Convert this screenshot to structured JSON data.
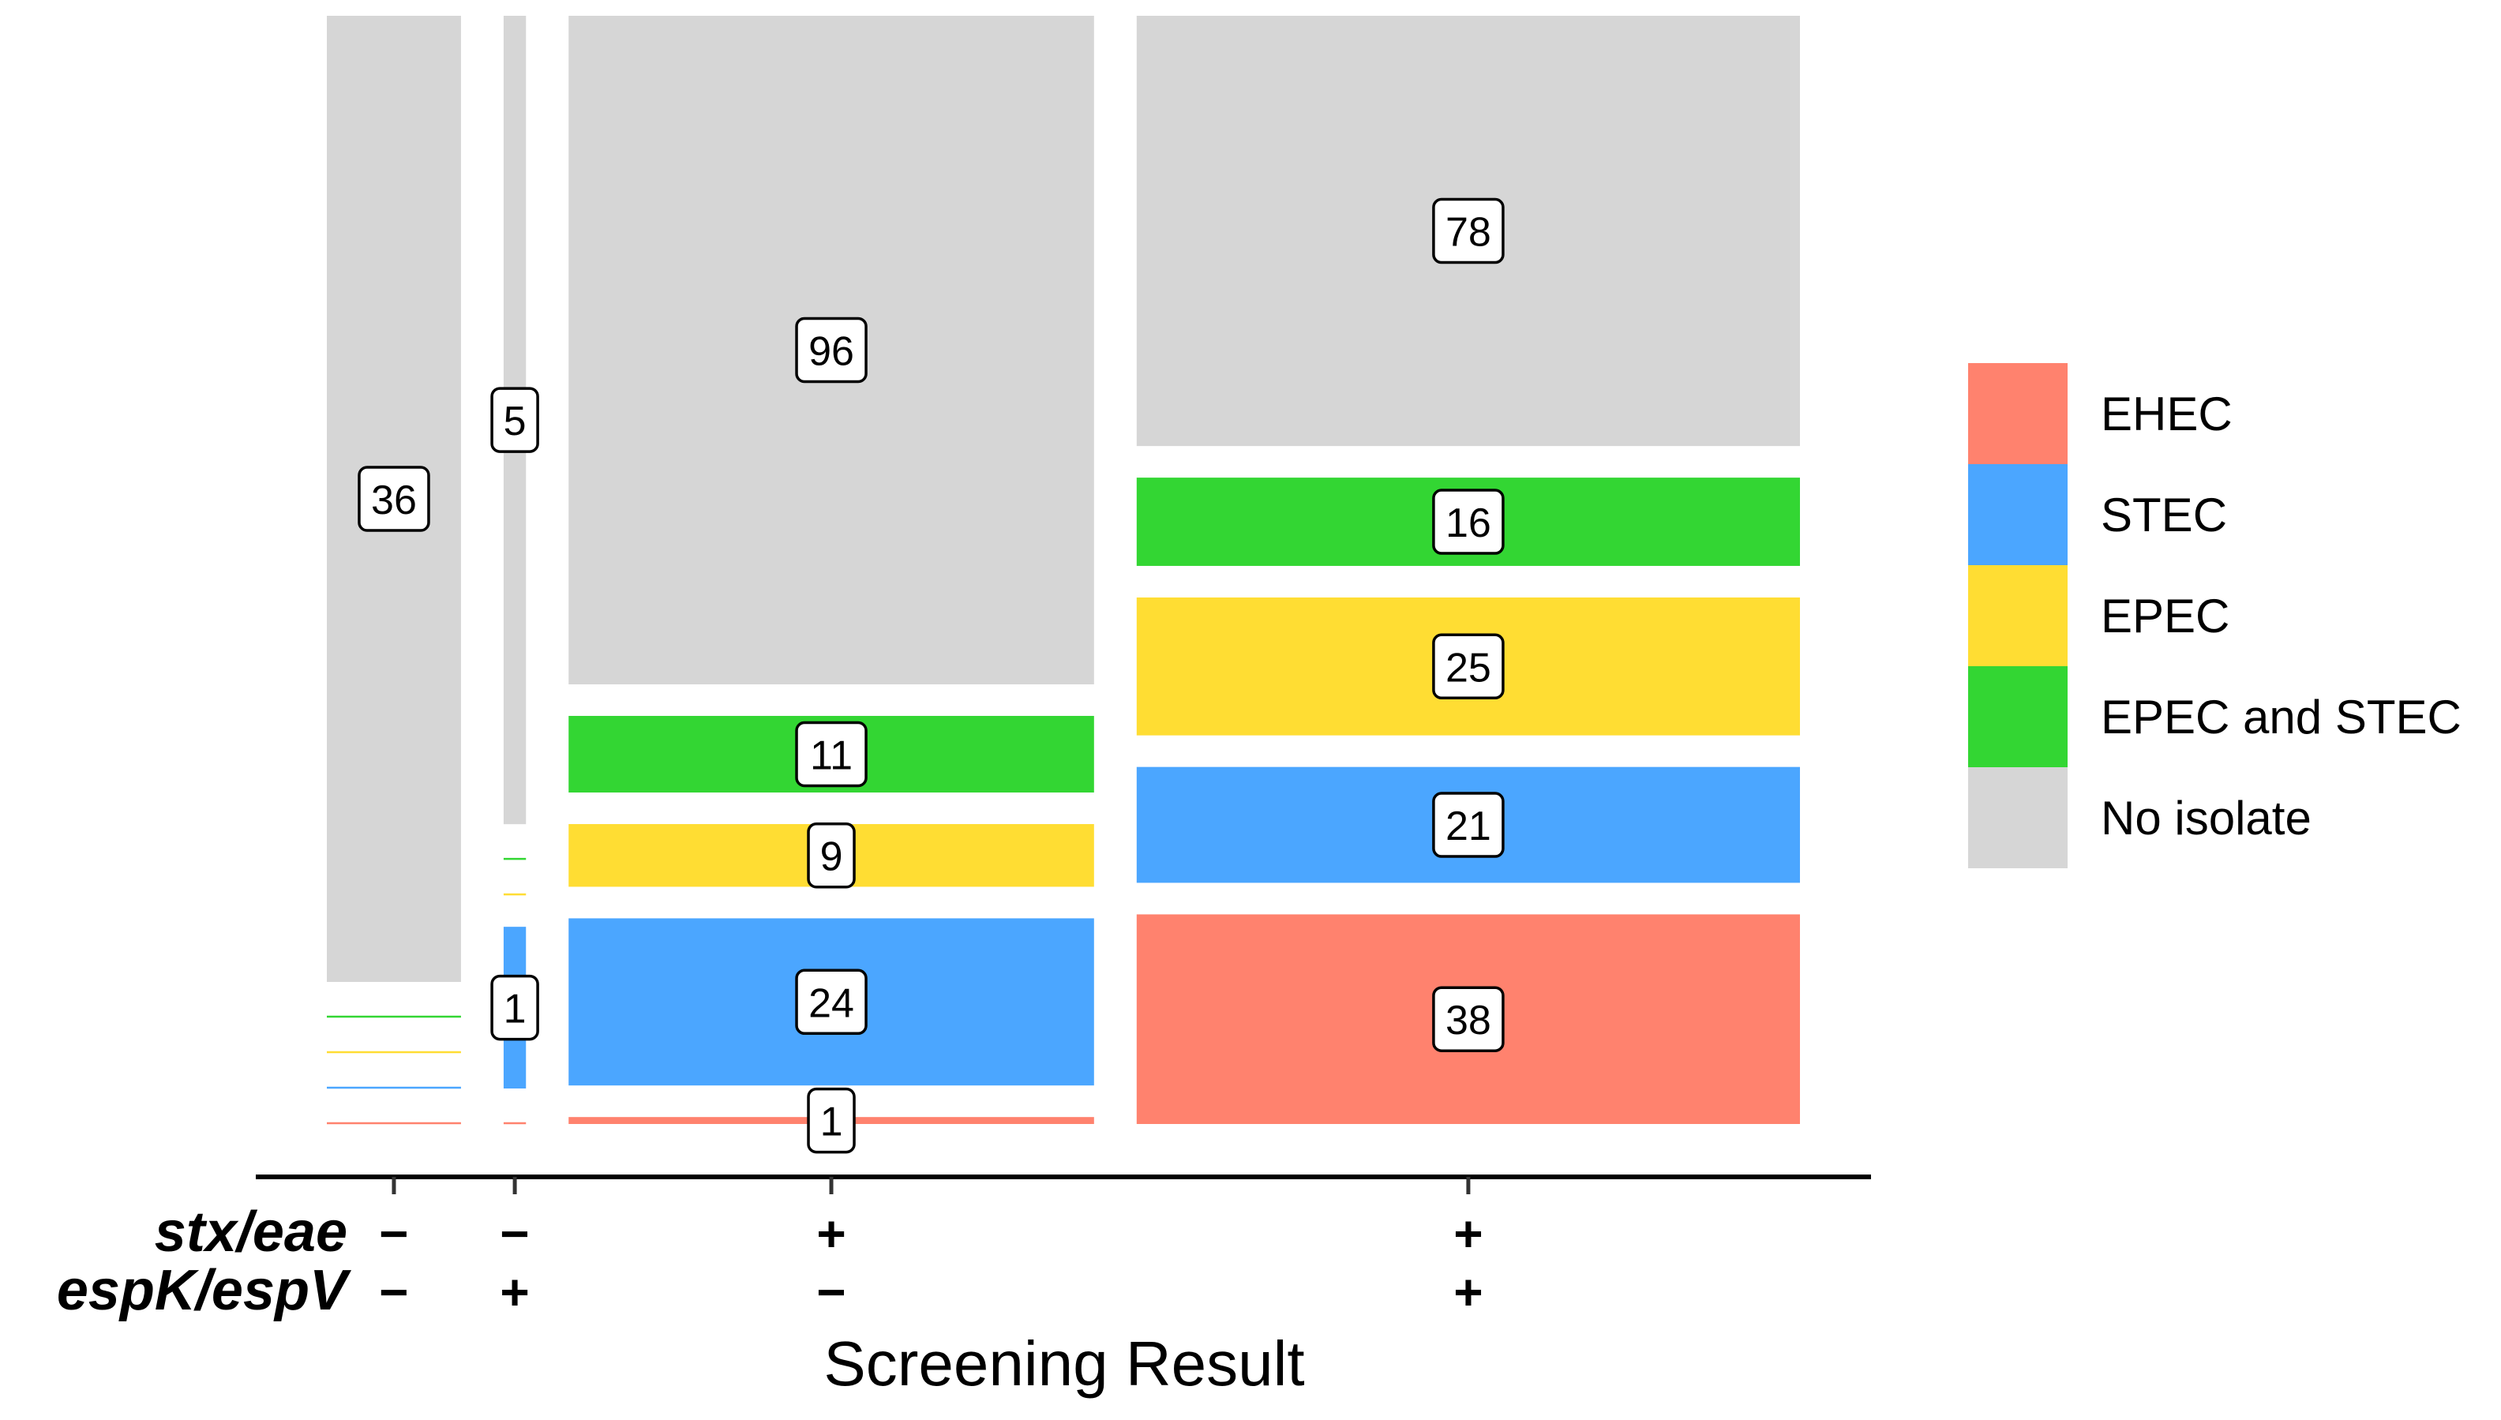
{
  "chart_data": {
    "type": "mosaic",
    "xlabel": "Screening Result",
    "row_labels": [
      "stx/eae",
      "espK/espV"
    ],
    "columns": [
      {
        "signs": [
          "−",
          "−"
        ],
        "counts": {
          "EHEC": 0,
          "STEC": 0,
          "EPEC": 0,
          "EPEC and STEC": 0,
          "No isolate": 36
        }
      },
      {
        "signs": [
          "−",
          "+"
        ],
        "counts": {
          "EHEC": 0,
          "STEC": 1,
          "EPEC": 0,
          "EPEC and STEC": 0,
          "No isolate": 5
        }
      },
      {
        "signs": [
          "+",
          "−"
        ],
        "counts": {
          "EHEC": 1,
          "STEC": 24,
          "EPEC": 9,
          "EPEC and STEC": 11,
          "No isolate": 96
        }
      },
      {
        "signs": [
          "+",
          "+"
        ],
        "counts": {
          "EHEC": 38,
          "STEC": 21,
          "EPEC": 25,
          "EPEC and STEC": 16,
          "No isolate": 78
        }
      }
    ],
    "categories": [
      "EHEC",
      "STEC",
      "EPEC",
      "EPEC and STEC",
      "No isolate"
    ],
    "colors": {
      "EHEC": "#FF826E",
      "STEC": "#4BA6FF",
      "EPEC": "#FFDD33",
      "EPEC and STEC": "#33D633",
      "No isolate": "#D6D6D6"
    },
    "legend_position": "right"
  }
}
